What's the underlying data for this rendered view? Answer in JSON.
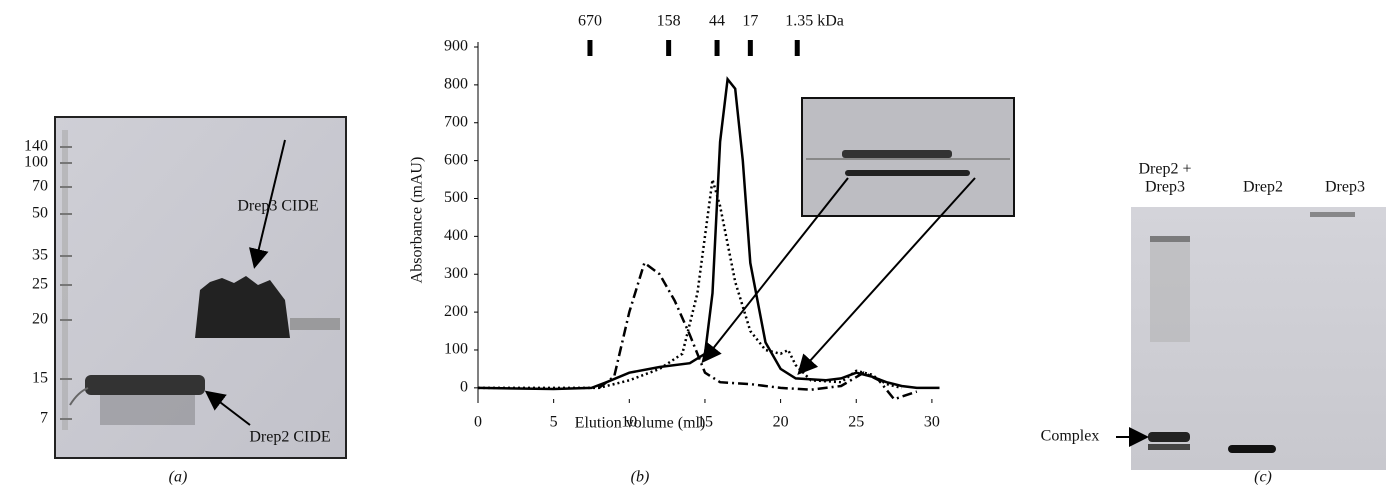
{
  "chart_data": {
    "type": "line",
    "xlabel": "Elution volume (ml)",
    "ylabel": "Absorbance (mAU)",
    "caption": "(b)",
    "xlim": [
      0,
      32
    ],
    "xticks": [
      0,
      5,
      10,
      15,
      20,
      25,
      30
    ],
    "ylim": [
      -40,
      900
    ],
    "yticks": [
      0,
      100,
      200,
      300,
      400,
      500,
      600,
      700,
      800,
      900
    ],
    "markers": [
      {
        "value": 7.4,
        "label": "670"
      },
      {
        "value": 12.6,
        "label": "158"
      },
      {
        "value": 15.8,
        "label": "44"
      },
      {
        "value": 18.0,
        "label": "17"
      },
      {
        "value": 21.1,
        "label": "1.35 kDa"
      }
    ],
    "series": [
      {
        "color": "#000000",
        "style": "solid",
        "x": [
          0,
          5,
          7.5,
          8.5,
          10,
          12,
          14,
          15,
          15.5,
          16,
          16.5,
          17,
          17.5,
          18,
          19,
          20,
          21,
          23,
          24,
          25,
          26,
          27,
          28,
          29,
          30.5
        ],
        "values": [
          0,
          -3,
          0,
          15,
          40,
          55,
          65,
          90,
          250,
          650,
          815,
          790,
          600,
          330,
          120,
          50,
          25,
          20,
          25,
          40,
          30,
          15,
          5,
          0,
          0
        ]
      },
      {
        "color": "#000000",
        "style": "dotted",
        "x": [
          0,
          8,
          10,
          12,
          13.5,
          14.5,
          15.5,
          16,
          17,
          18,
          19,
          20,
          20.5,
          21,
          22,
          24,
          25,
          26,
          27,
          28
        ],
        "values": [
          0,
          0,
          20,
          50,
          90,
          250,
          550,
          480,
          280,
          150,
          100,
          90,
          100,
          60,
          20,
          15,
          45,
          35,
          10,
          0
        ]
      },
      {
        "color": "#000000",
        "style": "dashdot",
        "x": [
          8,
          9,
          10,
          11,
          12,
          13,
          14,
          15,
          16,
          18,
          20,
          22,
          24,
          25.5,
          26.5,
          27.5,
          29
        ],
        "values": [
          0,
          30,
          200,
          330,
          300,
          230,
          140,
          40,
          15,
          10,
          0,
          -5,
          5,
          40,
          20,
          -30,
          -10
        ]
      }
    ]
  },
  "panel_a": {
    "ladder": [
      "140",
      "100",
      "70",
      "50",
      "35",
      "25",
      "20",
      "15",
      "7"
    ],
    "upper_band": "Drep3 CIDE",
    "lower_band": "Drep2 CIDE",
    "caption": "(a)"
  },
  "panel_c": {
    "lanes": [
      "Drep2 +",
      "Drep3",
      "Drep2",
      "Drep3"
    ],
    "band": "Complex",
    "caption": "(c)"
  }
}
